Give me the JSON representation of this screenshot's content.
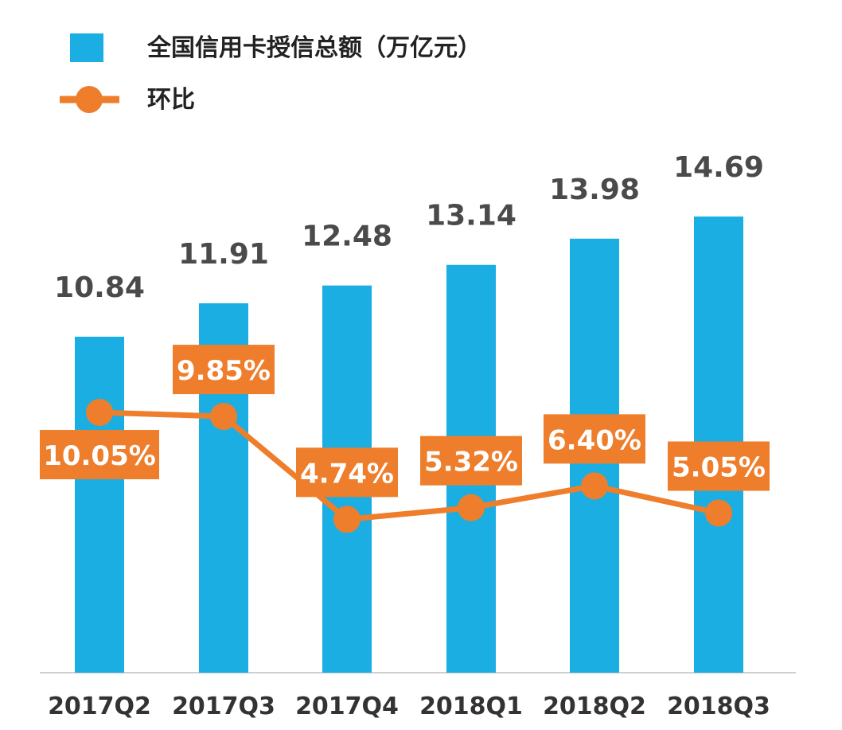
{
  "chart_data": {
    "type": "bar",
    "categories": [
      "2017Q2",
      "2017Q3",
      "2017Q4",
      "2018Q1",
      "2018Q2",
      "2018Q3"
    ],
    "series": [
      {
        "name": "全国信用卡授信总额（万亿元）",
        "type": "bar",
        "values": [
          10.84,
          11.91,
          12.48,
          13.14,
          13.98,
          14.69
        ],
        "labels": [
          "10.84",
          "11.91",
          "12.48",
          "13.14",
          "13.98",
          "14.69"
        ],
        "color": "#1aaee3"
      },
      {
        "name": "环比",
        "type": "line",
        "values": [
          10.05,
          9.85,
          4.74,
          5.32,
          6.4,
          5.05
        ],
        "labels": [
          "10.05%",
          "9.85%",
          "4.74%",
          "5.32%",
          "6.40%",
          "5.05%"
        ],
        "color": "#ee7e2b"
      }
    ],
    "legend": "top-left",
    "grid": false
  }
}
